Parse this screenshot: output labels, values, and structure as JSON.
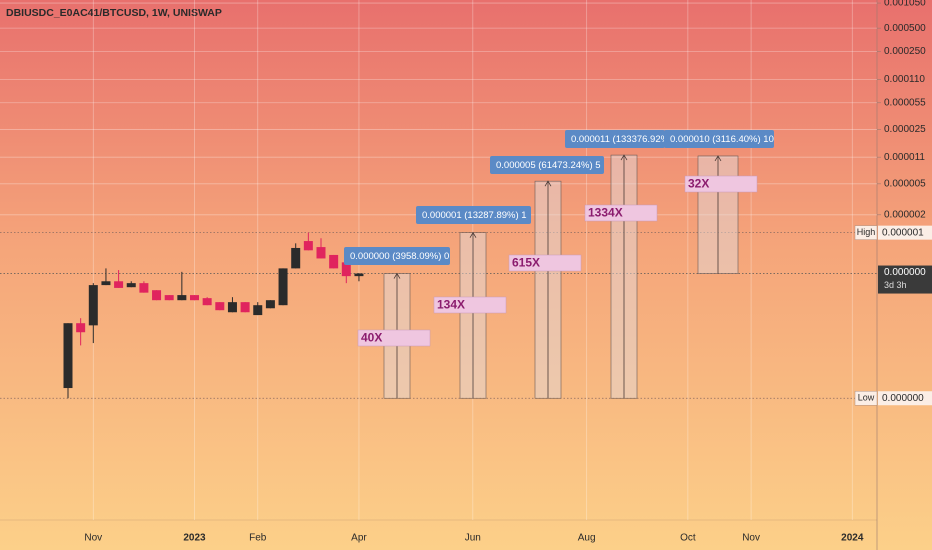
{
  "chart_data": {
    "type": "candlestick",
    "title": "DBIUSDC_E0AC41/BTCUSD, 1W, UNISWAP",
    "log_scale": true,
    "grid": true,
    "up_color": "#2b2b2b",
    "down_color": "#e0245e",
    "ylim": [
      2.4e-10,
      0.00115
    ],
    "yticks": [
      {
        "value": 0.00105,
        "label": "0.001050"
      },
      {
        "value": 0.0005,
        "label": "0.000500"
      },
      {
        "value": 0.00025,
        "label": "0.000250"
      },
      {
        "value": 0.00011,
        "label": "0.000110"
      },
      {
        "value": 5.5e-05,
        "label": "0.000055"
      },
      {
        "value": 2.5e-05,
        "label": "0.000025"
      },
      {
        "value": 1.1e-05,
        "label": "0.000011"
      },
      {
        "value": 5e-06,
        "label": "0.000005"
      },
      {
        "value": 2e-06,
        "label": "0.000002"
      }
    ],
    "categories": [
      null,
      null,
      "Nov",
      null,
      null,
      null,
      null,
      null,
      null,
      null,
      "2023",
      null,
      null,
      null,
      null,
      "Feb",
      null,
      null,
      null,
      null,
      null,
      null,
      null,
      "Apr",
      null,
      null,
      null,
      null,
      null,
      null,
      null,
      null,
      "Jun",
      null,
      null,
      null,
      null,
      null,
      null,
      null,
      null,
      "Aug",
      null,
      null,
      null,
      null,
      null,
      null,
      null,
      "Oct",
      null,
      null,
      null,
      null,
      "Nov",
      null,
      null,
      null,
      null,
      null,
      null,
      null,
      "2024",
      null,
      null
    ],
    "open": [
      1.19e-08,
      8.1e-08,
      7.6e-08,
      2.5e-07,
      2.8e-07,
      2.35e-07,
      2.65e-07,
      2.15e-07,
      1.86e-07,
      1.6e-07,
      1.86e-07,
      1.7e-07,
      1.51e-07,
      1.12e-07,
      1.51e-07,
      1.03e-07,
      1.26e-07,
      1.38e-07,
      4.1e-07,
      9.2e-07,
      7.7e-07,
      6.1e-07,
      4.9e-07,
      3.26e-07,
      null,
      null,
      null,
      null,
      null,
      null,
      null,
      null,
      null,
      null,
      null,
      null,
      null,
      null,
      null,
      null,
      null,
      null,
      null,
      null,
      null,
      null,
      null,
      null,
      null,
      null,
      null,
      null,
      null,
      null,
      null,
      null,
      null,
      null,
      null,
      null,
      null,
      null,
      null,
      null,
      null
    ],
    "high": [
      8.1e-08,
      9.4e-08,
      2.65e-07,
      4.1e-07,
      3.9e-07,
      2.8e-07,
      2.8e-07,
      2.15e-07,
      1.86e-07,
      3.7e-07,
      1.86e-07,
      1.75e-07,
      1.51e-07,
      1.75e-07,
      1.51e-07,
      1.51e-07,
      1.6e-07,
      4.1e-07,
      8.6e-07,
      1.18e-06,
      1e-06,
      6.1e-07,
      4.9e-07,
      3.56e-07,
      null,
      null,
      null,
      null,
      null,
      null,
      null,
      null,
      null,
      null,
      null,
      null,
      null,
      null,
      null,
      null,
      null,
      null,
      null,
      null,
      null,
      null,
      null,
      null,
      null,
      null,
      null,
      null,
      null,
      null,
      null,
      null,
      null,
      null,
      null,
      null,
      null,
      null,
      null,
      null,
      null
    ],
    "low": [
      8.8e-09,
      4.2e-08,
      4.5e-08,
      2.5e-07,
      2.3e-07,
      2.35e-07,
      2e-07,
      1.6e-07,
      1.6e-07,
      1.6e-07,
      1.6e-07,
      1.38e-07,
      1.19e-07,
      1.12e-07,
      1.12e-07,
      1.03e-07,
      1.26e-07,
      1.38e-07,
      4.1e-07,
      7e-07,
      5.5e-07,
      4.1e-07,
      2.65e-07,
      2.8e-07,
      null,
      null,
      null,
      null,
      null,
      null,
      null,
      null,
      null,
      null,
      null,
      null,
      null,
      null,
      null,
      null,
      null,
      null,
      null,
      null,
      null,
      null,
      null,
      null,
      null,
      null,
      null,
      null,
      null,
      null,
      null,
      null,
      null,
      null,
      null,
      null,
      null,
      null,
      null,
      null,
      null
    ],
    "close": [
      8.1e-08,
      6.2e-08,
      2.5e-07,
      2.8e-07,
      2.3e-07,
      2.65e-07,
      2e-07,
      1.6e-07,
      1.6e-07,
      1.86e-07,
      1.6e-07,
      1.38e-07,
      1.19e-07,
      1.51e-07,
      1.12e-07,
      1.38e-07,
      1.6e-07,
      4.1e-07,
      7.5e-07,
      7e-07,
      5.5e-07,
      4.1e-07,
      3.26e-07,
      3.52e-07,
      null,
      null,
      null,
      null,
      null,
      null,
      null,
      null,
      null,
      null,
      null,
      null,
      null,
      null,
      null,
      null,
      null,
      null,
      null,
      null,
      null,
      null,
      null,
      null,
      null,
      null,
      null,
      null,
      null,
      null,
      null,
      null,
      null,
      null,
      null,
      null,
      null,
      null,
      null,
      null,
      null
    ],
    "markers": {
      "high": {
        "tag": "High",
        "value": 1.18e-06,
        "label": "0.000001"
      },
      "last": {
        "value": 3.52e-07,
        "label": "0.000000",
        "countdown": "3d 3h"
      },
      "low": {
        "tag": "Low",
        "value": 8.8e-09,
        "label": "0.000000"
      }
    },
    "measurements": [
      {
        "from": 8.8e-09,
        "to": 3.52e-07,
        "label": "40X",
        "readout": "0.000000 (3958.09%) 0"
      },
      {
        "from": 8.8e-09,
        "to": 1.18e-06,
        "label": "134X",
        "readout": "0.000001 (13287.89%) 1"
      },
      {
        "from": 8.8e-09,
        "to": 5.41e-06,
        "label": "615X",
        "readout": "0.000005 (61473.24%) 5"
      },
      {
        "from": 8.8e-09,
        "to": 1.17e-05,
        "label": "1334X",
        "readout": "0.000011 (133376.92%"
      },
      {
        "from": 3.52e-07,
        "to": 1.14e-05,
        "label": "32X",
        "readout": "0.000010 (3116.40%) 10"
      }
    ]
  }
}
